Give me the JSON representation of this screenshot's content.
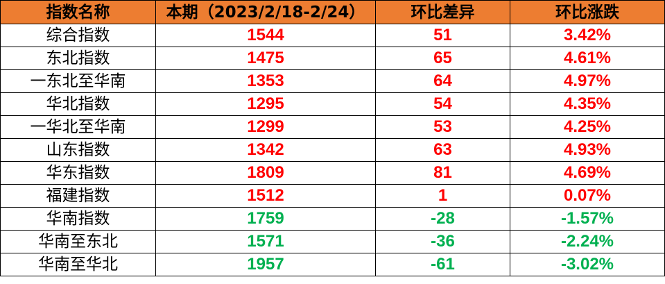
{
  "headers": [
    "指数名称",
    "本期（2023/2/18-2/24）",
    "环比差异",
    "环比涨跌"
  ],
  "colors": {
    "header_bg": "#ED7D31",
    "up": "#FF0000",
    "down": "#00B050"
  },
  "rows": [
    {
      "name": "综合指数",
      "value": "1544",
      "diff": "51",
      "pct": "3.42%",
      "trend": "up"
    },
    {
      "name": "东北指数",
      "value": "1475",
      "diff": "65",
      "pct": "4.61%",
      "trend": "up"
    },
    {
      "name": "一东北至华南",
      "value": "1353",
      "diff": "64",
      "pct": "4.97%",
      "trend": "up"
    },
    {
      "name": "华北指数",
      "value": "1295",
      "diff": "54",
      "pct": "4.35%",
      "trend": "up"
    },
    {
      "name": "一华北至华南",
      "value": "1299",
      "diff": "53",
      "pct": "4.25%",
      "trend": "up"
    },
    {
      "name": "山东指数",
      "value": "1342",
      "diff": "63",
      "pct": "4.93%",
      "trend": "up"
    },
    {
      "name": "华东指数",
      "value": "1809",
      "diff": "81",
      "pct": "4.69%",
      "trend": "up"
    },
    {
      "name": "福建指数",
      "value": "1512",
      "diff": "1",
      "pct": "0.07%",
      "trend": "up"
    },
    {
      "name": "华南指数",
      "value": "1759",
      "diff": "-28",
      "pct": "-1.57%",
      "trend": "down"
    },
    {
      "name": "华南至东北",
      "value": "1571",
      "diff": "-36",
      "pct": "-2.24%",
      "trend": "down"
    },
    {
      "name": "华南至华北",
      "value": "1957",
      "diff": "-61",
      "pct": "-3.02%",
      "trend": "down"
    }
  ]
}
